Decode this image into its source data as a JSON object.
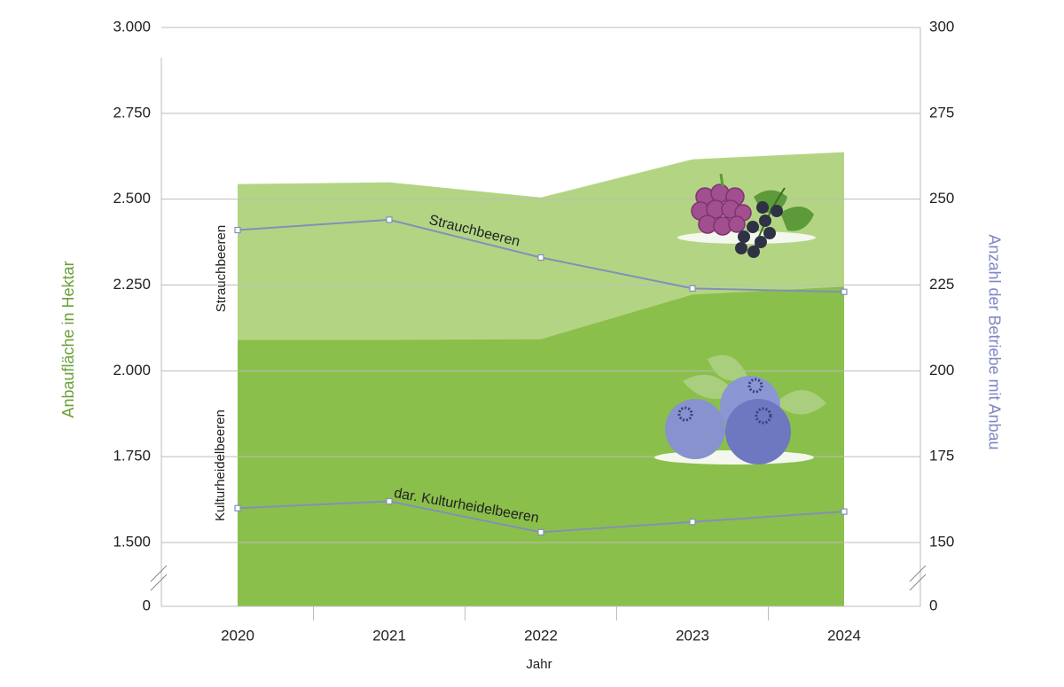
{
  "chart_data": {
    "type": "area-line",
    "categories": [
      "2020",
      "2021",
      "2022",
      "2023",
      "2024"
    ],
    "x_label": "Jahr",
    "y_label": "Anbaufläche in Hektar",
    "y2_label": "Anzahl der Betriebe mit Anbau",
    "axis_break": true,
    "ylim": [
      0,
      3000
    ],
    "yticks": [
      0,
      {
        "value": 1500,
        "label": "1.500"
      },
      {
        "value": 1750,
        "label": "1.750"
      },
      {
        "value": 2000,
        "label": "2.000"
      },
      {
        "value": 2250,
        "label": "2.250"
      },
      {
        "value": 2500,
        "label": "2.500"
      },
      {
        "value": 2750,
        "label": "2.750"
      },
      {
        "value": 3000,
        "label": "3.000"
      }
    ],
    "y2lim": [
      0,
      300
    ],
    "y2ticks": [
      0,
      150,
      175,
      200,
      225,
      250,
      275,
      300
    ],
    "grid": true,
    "series": [
      {
        "name": "Strauchbeeren",
        "type": "area",
        "axis": "y",
        "color": "#b3d583",
        "values": [
          2544,
          2549,
          2505,
          2616,
          2637
        ]
      },
      {
        "name": "Kulturheidelbeeren",
        "type": "area",
        "axis": "y",
        "color": "#8bbf4b",
        "values": [
          2090,
          2090,
          2092,
          2222,
          2245
        ]
      },
      {
        "name": "Strauchbeeren",
        "type": "line",
        "axis": "y2",
        "color": "#8290b8",
        "values": [
          241,
          244,
          233,
          224,
          223
        ]
      },
      {
        "name": "dar. Kulturheidelbeeren",
        "type": "line",
        "axis": "y2",
        "color": "#8290b8",
        "values": [
          160,
          162,
          153,
          156,
          159
        ]
      }
    ]
  }
}
